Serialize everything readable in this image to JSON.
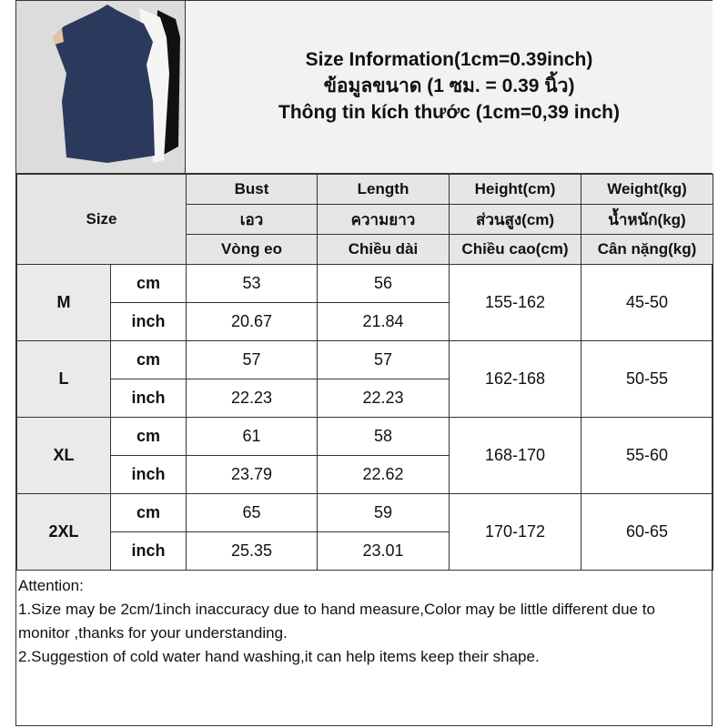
{
  "title": {
    "line1": "Size Information(1cm=0.39inch)",
    "line2": "ข้อมูลขนาด (1 ซม. = 0.39 นิ้ว)",
    "line3": "Thông tin kích thước (1cm=0,39 inch)"
  },
  "product_image": {
    "description_icon": "sleeveless-turtleneck-tops-photo",
    "colors": [
      "#2b3a5c",
      "#f4f4f4",
      "#111111"
    ]
  },
  "table": {
    "size_label": "Size",
    "headers": [
      [
        "Bust",
        "Length",
        "Height(cm)",
        "Weight(kg)"
      ],
      [
        "เอว",
        "ความยาว",
        "ส่วนสูง(cm)",
        "น้ำหนัก(kg)"
      ],
      [
        "Vòng eo",
        "Chiều dài",
        "Chiều cao(cm)",
        "Cân nặng(kg)"
      ]
    ],
    "rows": [
      {
        "size": "M",
        "cm_label": "cm",
        "inch_label": "inch",
        "bust_cm": "53",
        "length_cm": "56",
        "bust_inch": "20.67",
        "length_inch": "21.84",
        "height": "155-162",
        "weight": "45-50"
      },
      {
        "size": "L",
        "cm_label": "cm",
        "inch_label": "inch",
        "bust_cm": "57",
        "length_cm": "57",
        "bust_inch": "22.23",
        "length_inch": "22.23",
        "height": "162-168",
        "weight": "50-55"
      },
      {
        "size": "XL",
        "cm_label": "cm",
        "inch_label": "inch",
        "bust_cm": "61",
        "length_cm": "58",
        "bust_inch": "23.79",
        "length_inch": "22.62",
        "height": "168-170",
        "weight": "55-60"
      },
      {
        "size": "2XL",
        "cm_label": "cm",
        "inch_label": "inch",
        "bust_cm": "65",
        "length_cm": "59",
        "bust_inch": "25.35",
        "length_inch": "23.01",
        "height": "170-172",
        "weight": "60-65"
      }
    ]
  },
  "attention": {
    "heading": "Attention:",
    "note1": "1.Size may be 2cm/1inch inaccuracy due to hand measure,Color may be little different due to monitor ,thanks for your understanding.",
    "note2": "2.Suggestion of cold water hand washing,it can help items keep their shape."
  }
}
